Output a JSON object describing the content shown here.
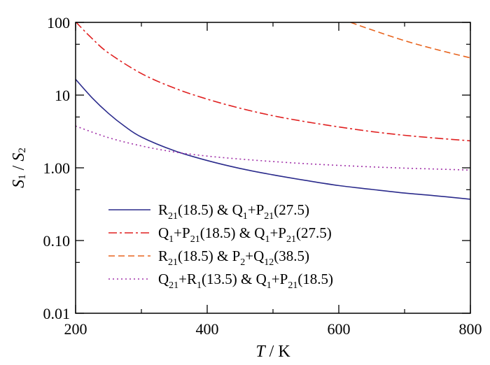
{
  "chart_data": {
    "type": "line",
    "title": "",
    "xlabel": {
      "var": "T",
      "unit": " / K"
    },
    "ylabel": {
      "a": "S",
      "a_sub": "1",
      "sep": " / ",
      "b": "S",
      "b_sub": "2"
    },
    "xlim": [
      200,
      800
    ],
    "ylim": [
      0.01,
      100
    ],
    "yscale": "log",
    "grid": false,
    "legend_position": "lower-center",
    "x_ticks": [
      {
        "v": 200,
        "label": "200"
      },
      {
        "v": 400,
        "label": "400"
      },
      {
        "v": 600,
        "label": "600"
      },
      {
        "v": 800,
        "label": "800"
      }
    ],
    "y_ticks": [
      {
        "v": 0.01,
        "label": "0.01"
      },
      {
        "v": 0.1,
        "label": "0.10"
      },
      {
        "v": 1,
        "label": "1.00"
      },
      {
        "v": 10,
        "label": "10"
      },
      {
        "v": 100,
        "label": "100"
      }
    ],
    "series": [
      {
        "label_parts": [
          {
            "t": "R"
          },
          {
            "t": "21",
            "sub": true
          },
          {
            "t": "(18.5) & Q"
          },
          {
            "t": "1",
            "sub": true
          },
          {
            "t": "+P"
          },
          {
            "t": "21",
            "sub": true
          },
          {
            "t": "(27.5)"
          }
        ],
        "color": "#2b2b8c",
        "dash": "",
        "x": [
          200,
          225,
          250,
          275,
          300,
          350,
          400,
          450,
          500,
          550,
          600,
          650,
          700,
          750,
          800
        ],
        "y": [
          16.5,
          9.2,
          5.6,
          3.7,
          2.65,
          1.72,
          1.26,
          0.98,
          0.8,
          0.67,
          0.57,
          0.505,
          0.45,
          0.41,
          0.37
        ]
      },
      {
        "label_parts": [
          {
            "t": "Q"
          },
          {
            "t": "1",
            "sub": true
          },
          {
            "t": "+P"
          },
          {
            "t": "21",
            "sub": true
          },
          {
            "t": "(18.5) & Q"
          },
          {
            "t": "1",
            "sub": true
          },
          {
            "t": "+P"
          },
          {
            "t": "21",
            "sub": true
          },
          {
            "t": "(27.5)"
          }
        ],
        "color": "#e02020",
        "dash": "12 4 3 4",
        "x": [
          200,
          225,
          250,
          300,
          350,
          400,
          450,
          500,
          550,
          600,
          650,
          700,
          750,
          800
        ],
        "y": [
          102,
          60,
          38,
          19.8,
          12.5,
          8.8,
          6.6,
          5.2,
          4.3,
          3.65,
          3.15,
          2.8,
          2.55,
          2.35
        ]
      },
      {
        "label_parts": [
          {
            "t": "R"
          },
          {
            "t": "21",
            "sub": true
          },
          {
            "t": "(18.5) & P"
          },
          {
            "t": "2",
            "sub": true
          },
          {
            "t": "+Q"
          },
          {
            "t": "12",
            "sub": true
          },
          {
            "t": "(38.5)"
          }
        ],
        "color": "#e8641e",
        "dash": "9 5",
        "x": [
          618,
          650,
          700,
          750,
          800
        ],
        "y": [
          100,
          79,
          56,
          42,
          32.5
        ]
      },
      {
        "label_parts": [
          {
            "t": "Q"
          },
          {
            "t": "21",
            "sub": true
          },
          {
            "t": "+R"
          },
          {
            "t": "1",
            "sub": true
          },
          {
            "t": "(13.5) & Q"
          },
          {
            "t": "1",
            "sub": true
          },
          {
            "t": "+P"
          },
          {
            "t": "21",
            "sub": true
          },
          {
            "t": "(18.5)"
          }
        ],
        "color": "#a030a8",
        "dash": "2 4",
        "x": [
          200,
          250,
          300,
          350,
          400,
          450,
          500,
          550,
          600,
          650,
          700,
          750,
          800
        ],
        "y": [
          3.75,
          2.6,
          2.0,
          1.65,
          1.45,
          1.32,
          1.22,
          1.14,
          1.08,
          1.03,
          0.99,
          0.96,
          0.93
        ]
      }
    ]
  }
}
